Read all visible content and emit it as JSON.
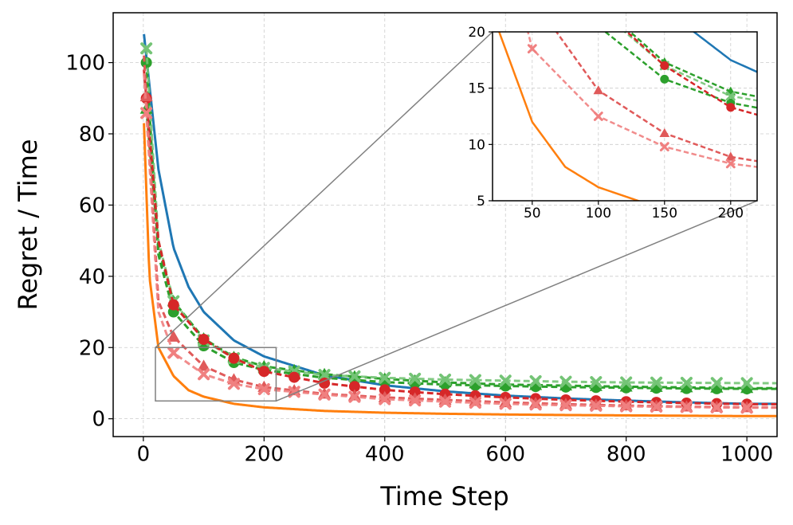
{
  "chart_data": [
    {
      "type": "line",
      "title": "",
      "xlabel": "Time Step",
      "ylabel": "Regret / Time",
      "xlim": [
        -50,
        1050
      ],
      "ylim": [
        -5,
        114
      ],
      "xticks": [
        0,
        200,
        400,
        600,
        800,
        1000
      ],
      "yticks": [
        0,
        20,
        40,
        60,
        80,
        100
      ],
      "xtick_labels": [
        "0",
        "200",
        "400",
        "600",
        "800",
        "1000"
      ],
      "ytick_labels": [
        "0",
        "20",
        "40",
        "60",
        "80",
        "100"
      ],
      "grid": true,
      "legend": "none",
      "zoom_box": {
        "x": [
          20,
          220
        ],
        "y": [
          5,
          20
        ]
      },
      "series": [
        {
          "color": "#1f77b4",
          "style": "solid",
          "marker": "none",
          "x": [
            1,
            25,
            50,
            75,
            100,
            150,
            200,
            300,
            400,
            500,
            600,
            700,
            800,
            900,
            1000
          ],
          "y": [
            108,
            70,
            48,
            37,
            30,
            22,
            17.5,
            12.2,
            9.4,
            7.7,
            6.5,
            5.7,
            5.1,
            4.6,
            4.2
          ]
        },
        {
          "color": "#ff7f0e",
          "style": "solid",
          "marker": "none",
          "x": [
            1,
            10,
            25,
            50,
            75,
            100,
            150,
            200,
            300,
            400,
            500,
            600,
            700,
            800,
            900,
            1000
          ],
          "y": [
            83,
            40,
            20,
            12,
            8,
            6.2,
            4.2,
            3.2,
            2.2,
            1.7,
            1.4,
            1.2,
            1.05,
            0.95,
            0.85,
            0.75
          ]
        },
        {
          "color": "#2ca02c",
          "style": "dashed",
          "marker": "triangle",
          "x": [
            5,
            25,
            50,
            100,
            150,
            200,
            300,
            400,
            500,
            600,
            700,
            800,
            900,
            1000
          ],
          "y": [
            87,
            48,
            33,
            22.5,
            17.3,
            14.7,
            12.5,
            11.2,
            10.2,
            9.6,
            9.3,
            9.0,
            8.8,
            8.6
          ]
        },
        {
          "color": "#2ca02c",
          "style": "dashed",
          "marker": "circle",
          "x": [
            5,
            25,
            50,
            100,
            150,
            200,
            300,
            400,
            500,
            600,
            700,
            800,
            900,
            1000
          ],
          "y": [
            100,
            46,
            30,
            20.5,
            15.8,
            13.7,
            11.5,
            10.3,
            9.6,
            9.2,
            8.9,
            8.7,
            8.5,
            8.4
          ]
        },
        {
          "color": "#74c476",
          "style": "dashed",
          "marker": "x",
          "x": [
            5,
            25,
            50,
            100,
            150,
            200,
            300,
            400,
            500,
            600,
            700,
            800,
            900,
            1000
          ],
          "y": [
            104,
            50,
            33,
            22,
            17,
            14.3,
            12.3,
            11.5,
            11,
            10.7,
            10.4,
            10.2,
            10.1,
            10
          ]
        },
        {
          "color": "#d62728",
          "style": "dashed",
          "marker": "circle",
          "x": [
            1,
            25,
            50,
            100,
            150,
            200,
            300,
            400,
            500,
            600,
            700,
            800,
            900,
            1000
          ],
          "y": [
            98,
            50,
            32,
            22.3,
            17,
            13.3,
            10,
            8.1,
            6.9,
            6.0,
            5.3,
            4.8,
            4.4,
            4.1
          ]
        },
        {
          "color": "#e05a5a",
          "style": "dashed",
          "marker": "triangle",
          "x": [
            1,
            25,
            50,
            100,
            150,
            200,
            300,
            400,
            500,
            600,
            700,
            800,
            900,
            1000
          ],
          "y": [
            102,
            33,
            23,
            14.8,
            11,
            8.9,
            7,
            6,
            5.3,
            4.6,
            4.1,
            3.7,
            3.4,
            3.2
          ]
        },
        {
          "color": "#f08080",
          "style": "dashed",
          "marker": "x",
          "x": [
            1,
            25,
            50,
            100,
            150,
            200,
            300,
            400,
            500,
            600,
            700,
            800,
            900,
            1000
          ],
          "y": [
            97,
            30,
            18.5,
            12.5,
            9.8,
            8.3,
            6.8,
            5.5,
            4.8,
            4.2,
            3.8,
            3.5,
            3.3,
            3.1
          ]
        }
      ]
    },
    {
      "type": "line",
      "title": "",
      "xlabel": "",
      "ylabel": "",
      "xlim": [
        20,
        220
      ],
      "ylim": [
        5,
        20
      ],
      "xticks": [
        50,
        100,
        150,
        200
      ],
      "yticks": [
        5,
        10,
        15,
        20
      ],
      "xtick_labels": [
        "50",
        "100",
        "150",
        "200"
      ],
      "ytick_labels": [
        "5",
        "10",
        "15",
        "20"
      ],
      "grid": true,
      "legend": "none"
    }
  ]
}
